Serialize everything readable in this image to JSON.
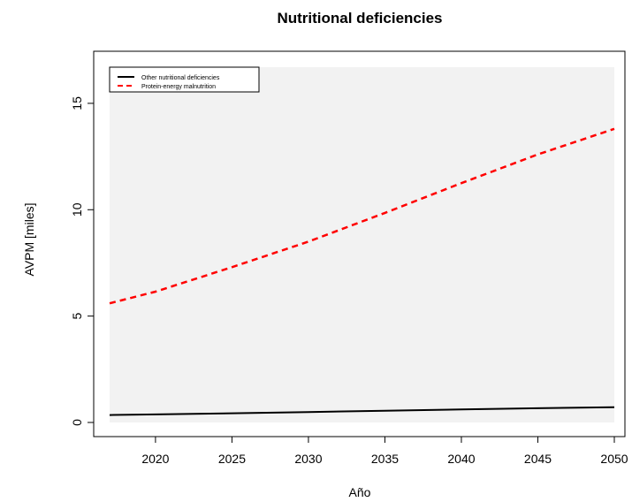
{
  "chart_data": {
    "type": "line",
    "title": "Nutritional deficiencies",
    "xlabel": "Año",
    "ylabel": "AVPM [miles]",
    "xlim": [
      2017,
      2050
    ],
    "ylim": [
      0,
      16.7
    ],
    "xticks": [
      2020,
      2025,
      2030,
      2035,
      2040,
      2045,
      2050
    ],
    "yticks": [
      0,
      5,
      10,
      15
    ],
    "plot_background": "#f2f2f2",
    "legend_position": "top-left",
    "series": [
      {
        "name": "Other nutritional deficiencies",
        "color": "#000000",
        "style": "solid",
        "x": [
          2017,
          2020,
          2025,
          2030,
          2035,
          2040,
          2045,
          2050
        ],
        "y": [
          0.35,
          0.38,
          0.43,
          0.49,
          0.55,
          0.61,
          0.67,
          0.72
        ]
      },
      {
        "name": "Protein-energy malnutrition",
        "color": "#ff0000",
        "style": "dashed",
        "x": [
          2017,
          2020,
          2025,
          2030,
          2035,
          2040,
          2045,
          2050
        ],
        "y": [
          5.6,
          6.15,
          7.3,
          8.5,
          9.85,
          11.25,
          12.6,
          13.8
        ]
      }
    ]
  }
}
